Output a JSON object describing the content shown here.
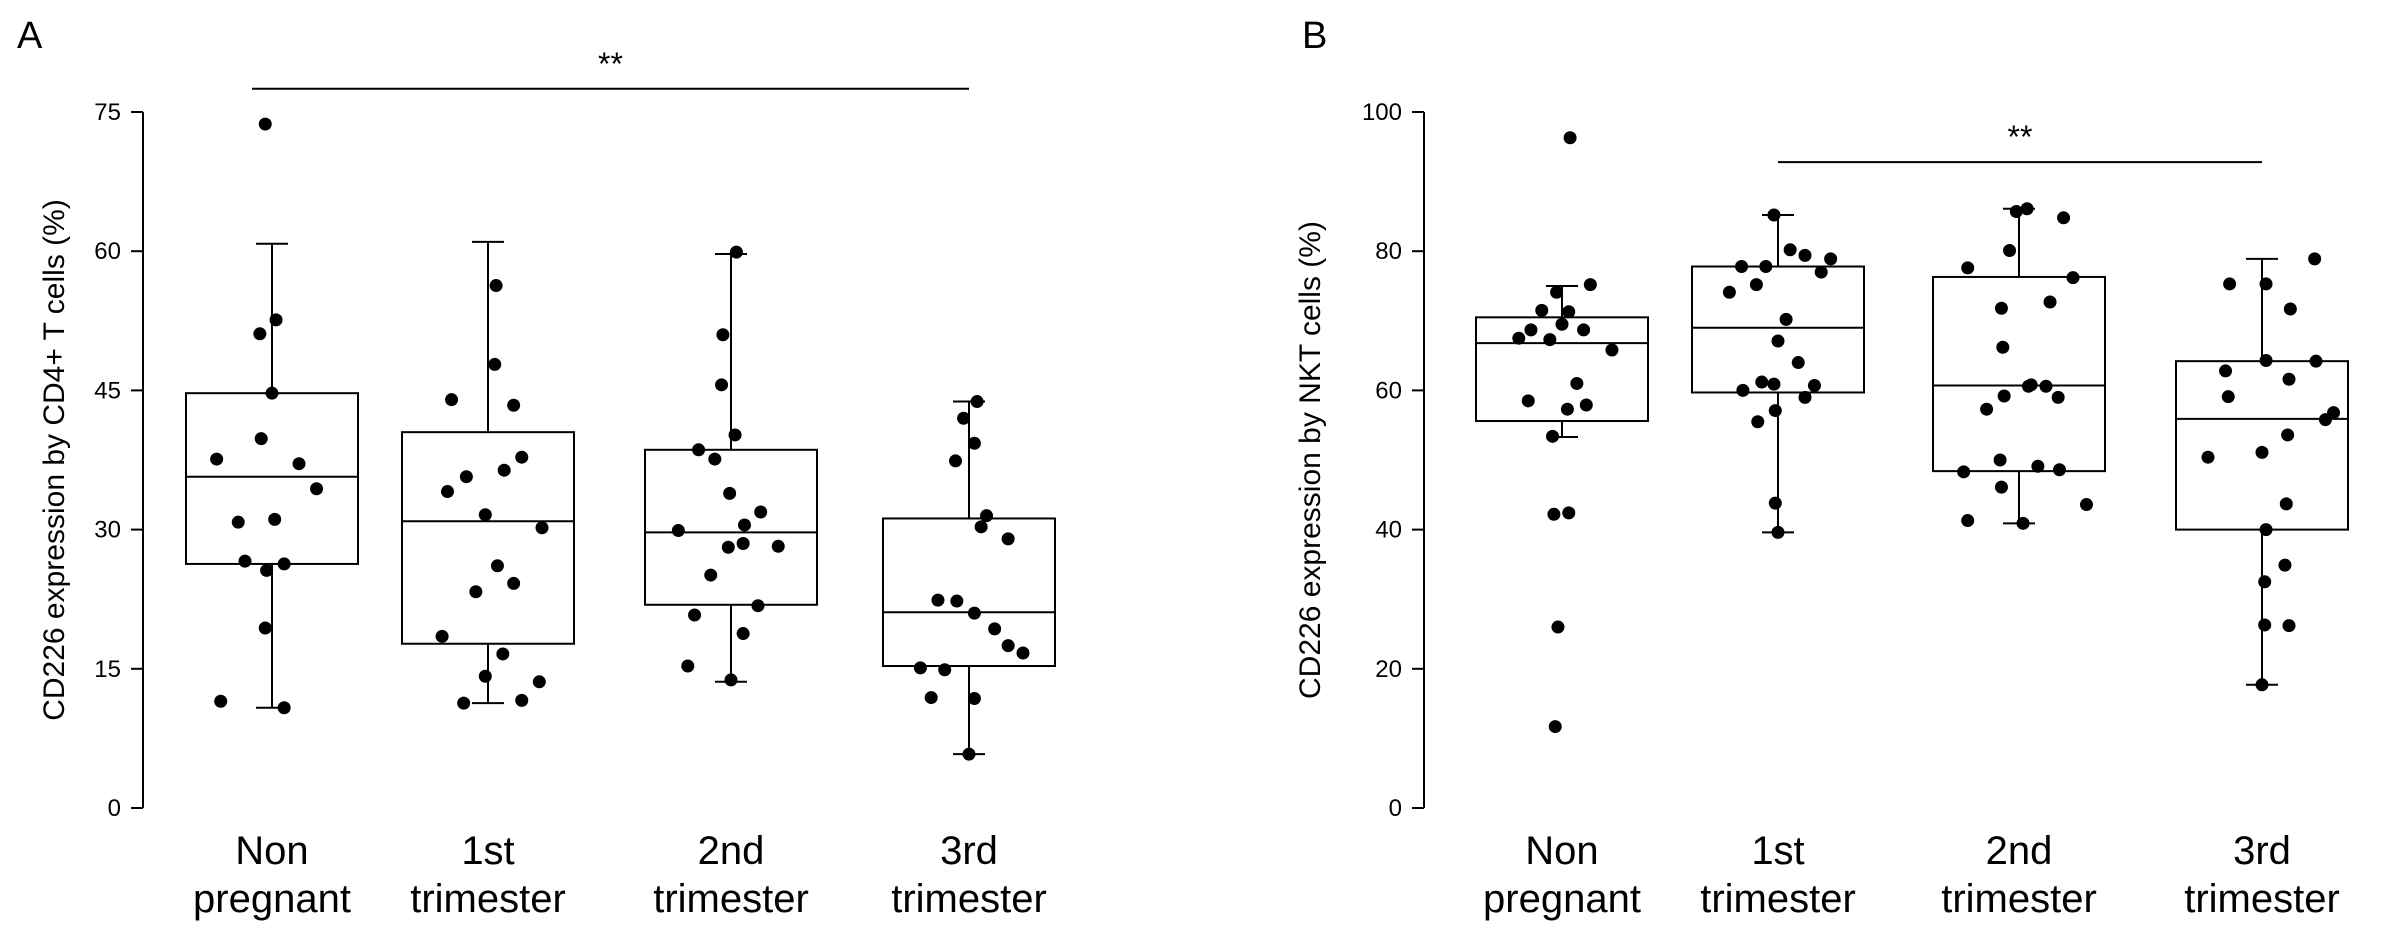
{
  "chart_data": [
    {
      "type": "box",
      "panel_label": "A",
      "title": "",
      "xlabel": "",
      "ylabel": "CD226 expression by CD4+ T cells (%)",
      "ylim": [
        0,
        75
      ],
      "yticks": [
        0,
        15,
        30,
        45,
        60,
        75
      ],
      "categories": [
        "Non\npregnant",
        "1st\ntrimester",
        "2nd\ntrimester",
        "3rd\ntrimester"
      ],
      "boxes": [
        {
          "min": 10.8,
          "q1": 26.3,
          "median": 35.7,
          "q3": 44.7,
          "max": 60.8
        },
        {
          "min": 11.3,
          "q1": 17.7,
          "median": 30.9,
          "q3": 40.5,
          "max": 61.0
        },
        {
          "min": 13.6,
          "q1": 21.9,
          "median": 29.7,
          "q3": 38.6,
          "max": 59.7
        },
        {
          "min": 5.8,
          "q1": 15.3,
          "median": 21.1,
          "q3": 31.2,
          "max": 43.8
        }
      ],
      "points": [
        [
          {
            "dx": -0.05,
            "y": 73.7
          },
          {
            "dx": 0.03,
            "y": 52.6
          },
          {
            "dx": -0.09,
            "y": 51.1
          },
          {
            "dx": 0.0,
            "y": 44.7
          },
          {
            "dx": -0.08,
            "y": 39.8
          },
          {
            "dx": -0.41,
            "y": 37.6
          },
          {
            "dx": 0.2,
            "y": 37.1
          },
          {
            "dx": 0.33,
            "y": 34.4
          },
          {
            "dx": -0.25,
            "y": 30.8
          },
          {
            "dx": 0.02,
            "y": 31.1
          },
          {
            "dx": -0.2,
            "y": 26.6
          },
          {
            "dx": 0.09,
            "y": 26.3
          },
          {
            "dx": -0.04,
            "y": 25.6
          },
          {
            "dx": -0.05,
            "y": 19.4
          },
          {
            "dx": -0.38,
            "y": 11.5
          },
          {
            "dx": 0.09,
            "y": 10.8
          }
        ],
        [
          {
            "dx": 0.06,
            "y": 56.3
          },
          {
            "dx": 0.05,
            "y": 47.8
          },
          {
            "dx": -0.27,
            "y": 44.0
          },
          {
            "dx": 0.19,
            "y": 43.4
          },
          {
            "dx": 0.25,
            "y": 37.8
          },
          {
            "dx": 0.12,
            "y": 36.4
          },
          {
            "dx": -0.16,
            "y": 35.7
          },
          {
            "dx": -0.3,
            "y": 34.1
          },
          {
            "dx": -0.02,
            "y": 31.6
          },
          {
            "dx": 0.4,
            "y": 30.2
          },
          {
            "dx": 0.07,
            "y": 26.1
          },
          {
            "dx": -0.09,
            "y": 23.3
          },
          {
            "dx": 0.19,
            "y": 24.2
          },
          {
            "dx": -0.34,
            "y": 18.5
          },
          {
            "dx": 0.11,
            "y": 16.6
          },
          {
            "dx": -0.02,
            "y": 14.2
          },
          {
            "dx": 0.38,
            "y": 13.6
          },
          {
            "dx": 0.25,
            "y": 11.6
          },
          {
            "dx": -0.18,
            "y": 11.3
          }
        ],
        [
          {
            "dx": 0.04,
            "y": 59.9
          },
          {
            "dx": -0.06,
            "y": 51.0
          },
          {
            "dx": -0.07,
            "y": 45.6
          },
          {
            "dx": 0.03,
            "y": 40.2
          },
          {
            "dx": -0.24,
            "y": 38.6
          },
          {
            "dx": -0.12,
            "y": 37.6
          },
          {
            "dx": -0.01,
            "y": 33.9
          },
          {
            "dx": 0.22,
            "y": 31.9
          },
          {
            "dx": 0.1,
            "y": 30.5
          },
          {
            "dx": -0.39,
            "y": 29.9
          },
          {
            "dx": 0.09,
            "y": 28.5
          },
          {
            "dx": -0.02,
            "y": 28.1
          },
          {
            "dx": 0.35,
            "y": 28.2
          },
          {
            "dx": -0.15,
            "y": 25.1
          },
          {
            "dx": 0.2,
            "y": 21.8
          },
          {
            "dx": -0.27,
            "y": 20.8
          },
          {
            "dx": 0.09,
            "y": 18.8
          },
          {
            "dx": -0.32,
            "y": 15.3
          },
          {
            "dx": 0.0,
            "y": 13.8
          }
        ],
        [
          {
            "dx": 0.06,
            "y": 43.8
          },
          {
            "dx": -0.04,
            "y": 42.0
          },
          {
            "dx": 0.04,
            "y": 39.3
          },
          {
            "dx": -0.1,
            "y": 37.4
          },
          {
            "dx": 0.13,
            "y": 31.5
          },
          {
            "dx": 0.29,
            "y": 29.0
          },
          {
            "dx": 0.09,
            "y": 30.3
          },
          {
            "dx": -0.23,
            "y": 22.4
          },
          {
            "dx": -0.09,
            "y": 22.3
          },
          {
            "dx": 0.04,
            "y": 21.0
          },
          {
            "dx": 0.19,
            "y": 19.3
          },
          {
            "dx": 0.29,
            "y": 17.5
          },
          {
            "dx": 0.4,
            "y": 16.7
          },
          {
            "dx": -0.36,
            "y": 15.1
          },
          {
            "dx": -0.18,
            "y": 14.9
          },
          {
            "dx": -0.28,
            "y": 11.9
          },
          {
            "dx": 0.04,
            "y": 11.8
          },
          {
            "dx": 0.0,
            "y": 5.8
          }
        ]
      ],
      "significance": {
        "label": "**",
        "from": 0,
        "to": 3,
        "y": 77.5
      }
    },
    {
      "type": "box",
      "panel_label": "B",
      "title": "",
      "xlabel": "",
      "ylabel": "CD226 expression by NKT cells (%)",
      "ylim": [
        0,
        100
      ],
      "yticks": [
        0,
        20,
        40,
        60,
        80,
        100
      ],
      "categories": [
        "Non\npregnant",
        "1st\ntrimester",
        "2nd\ntrimester",
        "3rd\ntrimester"
      ],
      "boxes": [
        {
          "min": 53.3,
          "q1": 55.6,
          "median": 66.8,
          "q3": 70.5,
          "max": 75.0
        },
        {
          "min": 39.6,
          "q1": 59.7,
          "median": 69.0,
          "q3": 77.8,
          "max": 85.2
        },
        {
          "min": 40.9,
          "q1": 48.4,
          "median": 60.7,
          "q3": 76.3,
          "max": 86.1
        },
        {
          "min": 17.7,
          "q1": 40.0,
          "median": 55.9,
          "q3": 64.2,
          "max": 78.9
        }
      ],
      "points": [
        [
          {
            "dx": 0.06,
            "y": 96.3
          },
          {
            "dx": -0.04,
            "y": 74.1
          },
          {
            "dx": 0.21,
            "y": 75.2
          },
          {
            "dx": -0.15,
            "y": 71.5
          },
          {
            "dx": 0.05,
            "y": 71.3
          },
          {
            "dx": 0.0,
            "y": 69.5
          },
          {
            "dx": -0.32,
            "y": 67.5
          },
          {
            "dx": -0.09,
            "y": 67.3
          },
          {
            "dx": 0.16,
            "y": 68.7
          },
          {
            "dx": 0.37,
            "y": 65.8
          },
          {
            "dx": -0.23,
            "y": 68.7
          },
          {
            "dx": 0.11,
            "y": 61.0
          },
          {
            "dx": -0.25,
            "y": 58.5
          },
          {
            "dx": 0.04,
            "y": 57.3
          },
          {
            "dx": 0.18,
            "y": 57.9
          },
          {
            "dx": -0.07,
            "y": 53.4
          },
          {
            "dx": -0.06,
            "y": 42.2
          },
          {
            "dx": 0.05,
            "y": 42.4
          },
          {
            "dx": -0.03,
            "y": 26.0
          },
          {
            "dx": -0.05,
            "y": 11.7
          }
        ],
        [
          {
            "dx": -0.03,
            "y": 85.2
          },
          {
            "dx": -0.09,
            "y": 77.8
          },
          {
            "dx": -0.27,
            "y": 77.8
          },
          {
            "dx": 0.09,
            "y": 80.2
          },
          {
            "dx": -0.16,
            "y": 75.2
          },
          {
            "dx": -0.36,
            "y": 74.1
          },
          {
            "dx": 0.2,
            "y": 79.4
          },
          {
            "dx": 0.39,
            "y": 78.9
          },
          {
            "dx": 0.32,
            "y": 77.0
          },
          {
            "dx": 0.06,
            "y": 70.2
          },
          {
            "dx": 0.0,
            "y": 67.1
          },
          {
            "dx": 0.15,
            "y": 64.0
          },
          {
            "dx": 0.27,
            "y": 60.7
          },
          {
            "dx": -0.03,
            "y": 60.9
          },
          {
            "dx": -0.12,
            "y": 61.2
          },
          {
            "dx": -0.26,
            "y": 60.0
          },
          {
            "dx": 0.2,
            "y": 59.0
          },
          {
            "dx": -0.15,
            "y": 55.5
          },
          {
            "dx": -0.02,
            "y": 57.1
          },
          {
            "dx": -0.02,
            "y": 43.8
          },
          {
            "dx": 0.0,
            "y": 39.6
          }
        ],
        [
          {
            "dx": 0.06,
            "y": 86.1
          },
          {
            "dx": -0.02,
            "y": 85.7
          },
          {
            "dx": 0.33,
            "y": 84.8
          },
          {
            "dx": -0.07,
            "y": 80.1
          },
          {
            "dx": -0.38,
            "y": 77.6
          },
          {
            "dx": 0.4,
            "y": 76.2
          },
          {
            "dx": -0.13,
            "y": 71.8
          },
          {
            "dx": 0.23,
            "y": 72.7
          },
          {
            "dx": -0.12,
            "y": 66.2
          },
          {
            "dx": 0.09,
            "y": 60.8
          },
          {
            "dx": 0.07,
            "y": 60.6
          },
          {
            "dx": 0.2,
            "y": 60.6
          },
          {
            "dx": -0.11,
            "y": 59.2
          },
          {
            "dx": 0.29,
            "y": 59.0
          },
          {
            "dx": -0.24,
            "y": 57.3
          },
          {
            "dx": -0.14,
            "y": 50.0
          },
          {
            "dx": 0.14,
            "y": 49.1
          },
          {
            "dx": -0.41,
            "y": 48.3
          },
          {
            "dx": 0.3,
            "y": 48.6
          },
          {
            "dx": -0.13,
            "y": 46.1
          },
          {
            "dx": 0.5,
            "y": 43.6
          },
          {
            "dx": -0.38,
            "y": 41.3
          },
          {
            "dx": 0.03,
            "y": 40.9
          }
        ],
        [
          {
            "dx": 0.39,
            "y": 78.9
          },
          {
            "dx": -0.24,
            "y": 75.3
          },
          {
            "dx": 0.03,
            "y": 75.3
          },
          {
            "dx": 0.21,
            "y": 71.7
          },
          {
            "dx": 0.03,
            "y": 64.3
          },
          {
            "dx": 0.4,
            "y": 64.2
          },
          {
            "dx": -0.27,
            "y": 62.8
          },
          {
            "dx": 0.2,
            "y": 61.6
          },
          {
            "dx": -0.25,
            "y": 59.1
          },
          {
            "dx": 0.53,
            "y": 56.8
          },
          {
            "dx": 0.47,
            "y": 55.8
          },
          {
            "dx": 0.19,
            "y": 53.6
          },
          {
            "dx": 0.0,
            "y": 51.1
          },
          {
            "dx": -0.4,
            "y": 50.4
          },
          {
            "dx": 0.18,
            "y": 43.7
          },
          {
            "dx": 0.03,
            "y": 40.0
          },
          {
            "dx": 0.17,
            "y": 34.9
          },
          {
            "dx": 0.02,
            "y": 32.5
          },
          {
            "dx": 0.02,
            "y": 26.3
          },
          {
            "dx": 0.2,
            "y": 26.2
          },
          {
            "dx": 0.0,
            "y": 17.7
          }
        ]
      ],
      "significance": {
        "label": "**",
        "from": 1,
        "to": 3,
        "y": 92.8
      }
    }
  ]
}
